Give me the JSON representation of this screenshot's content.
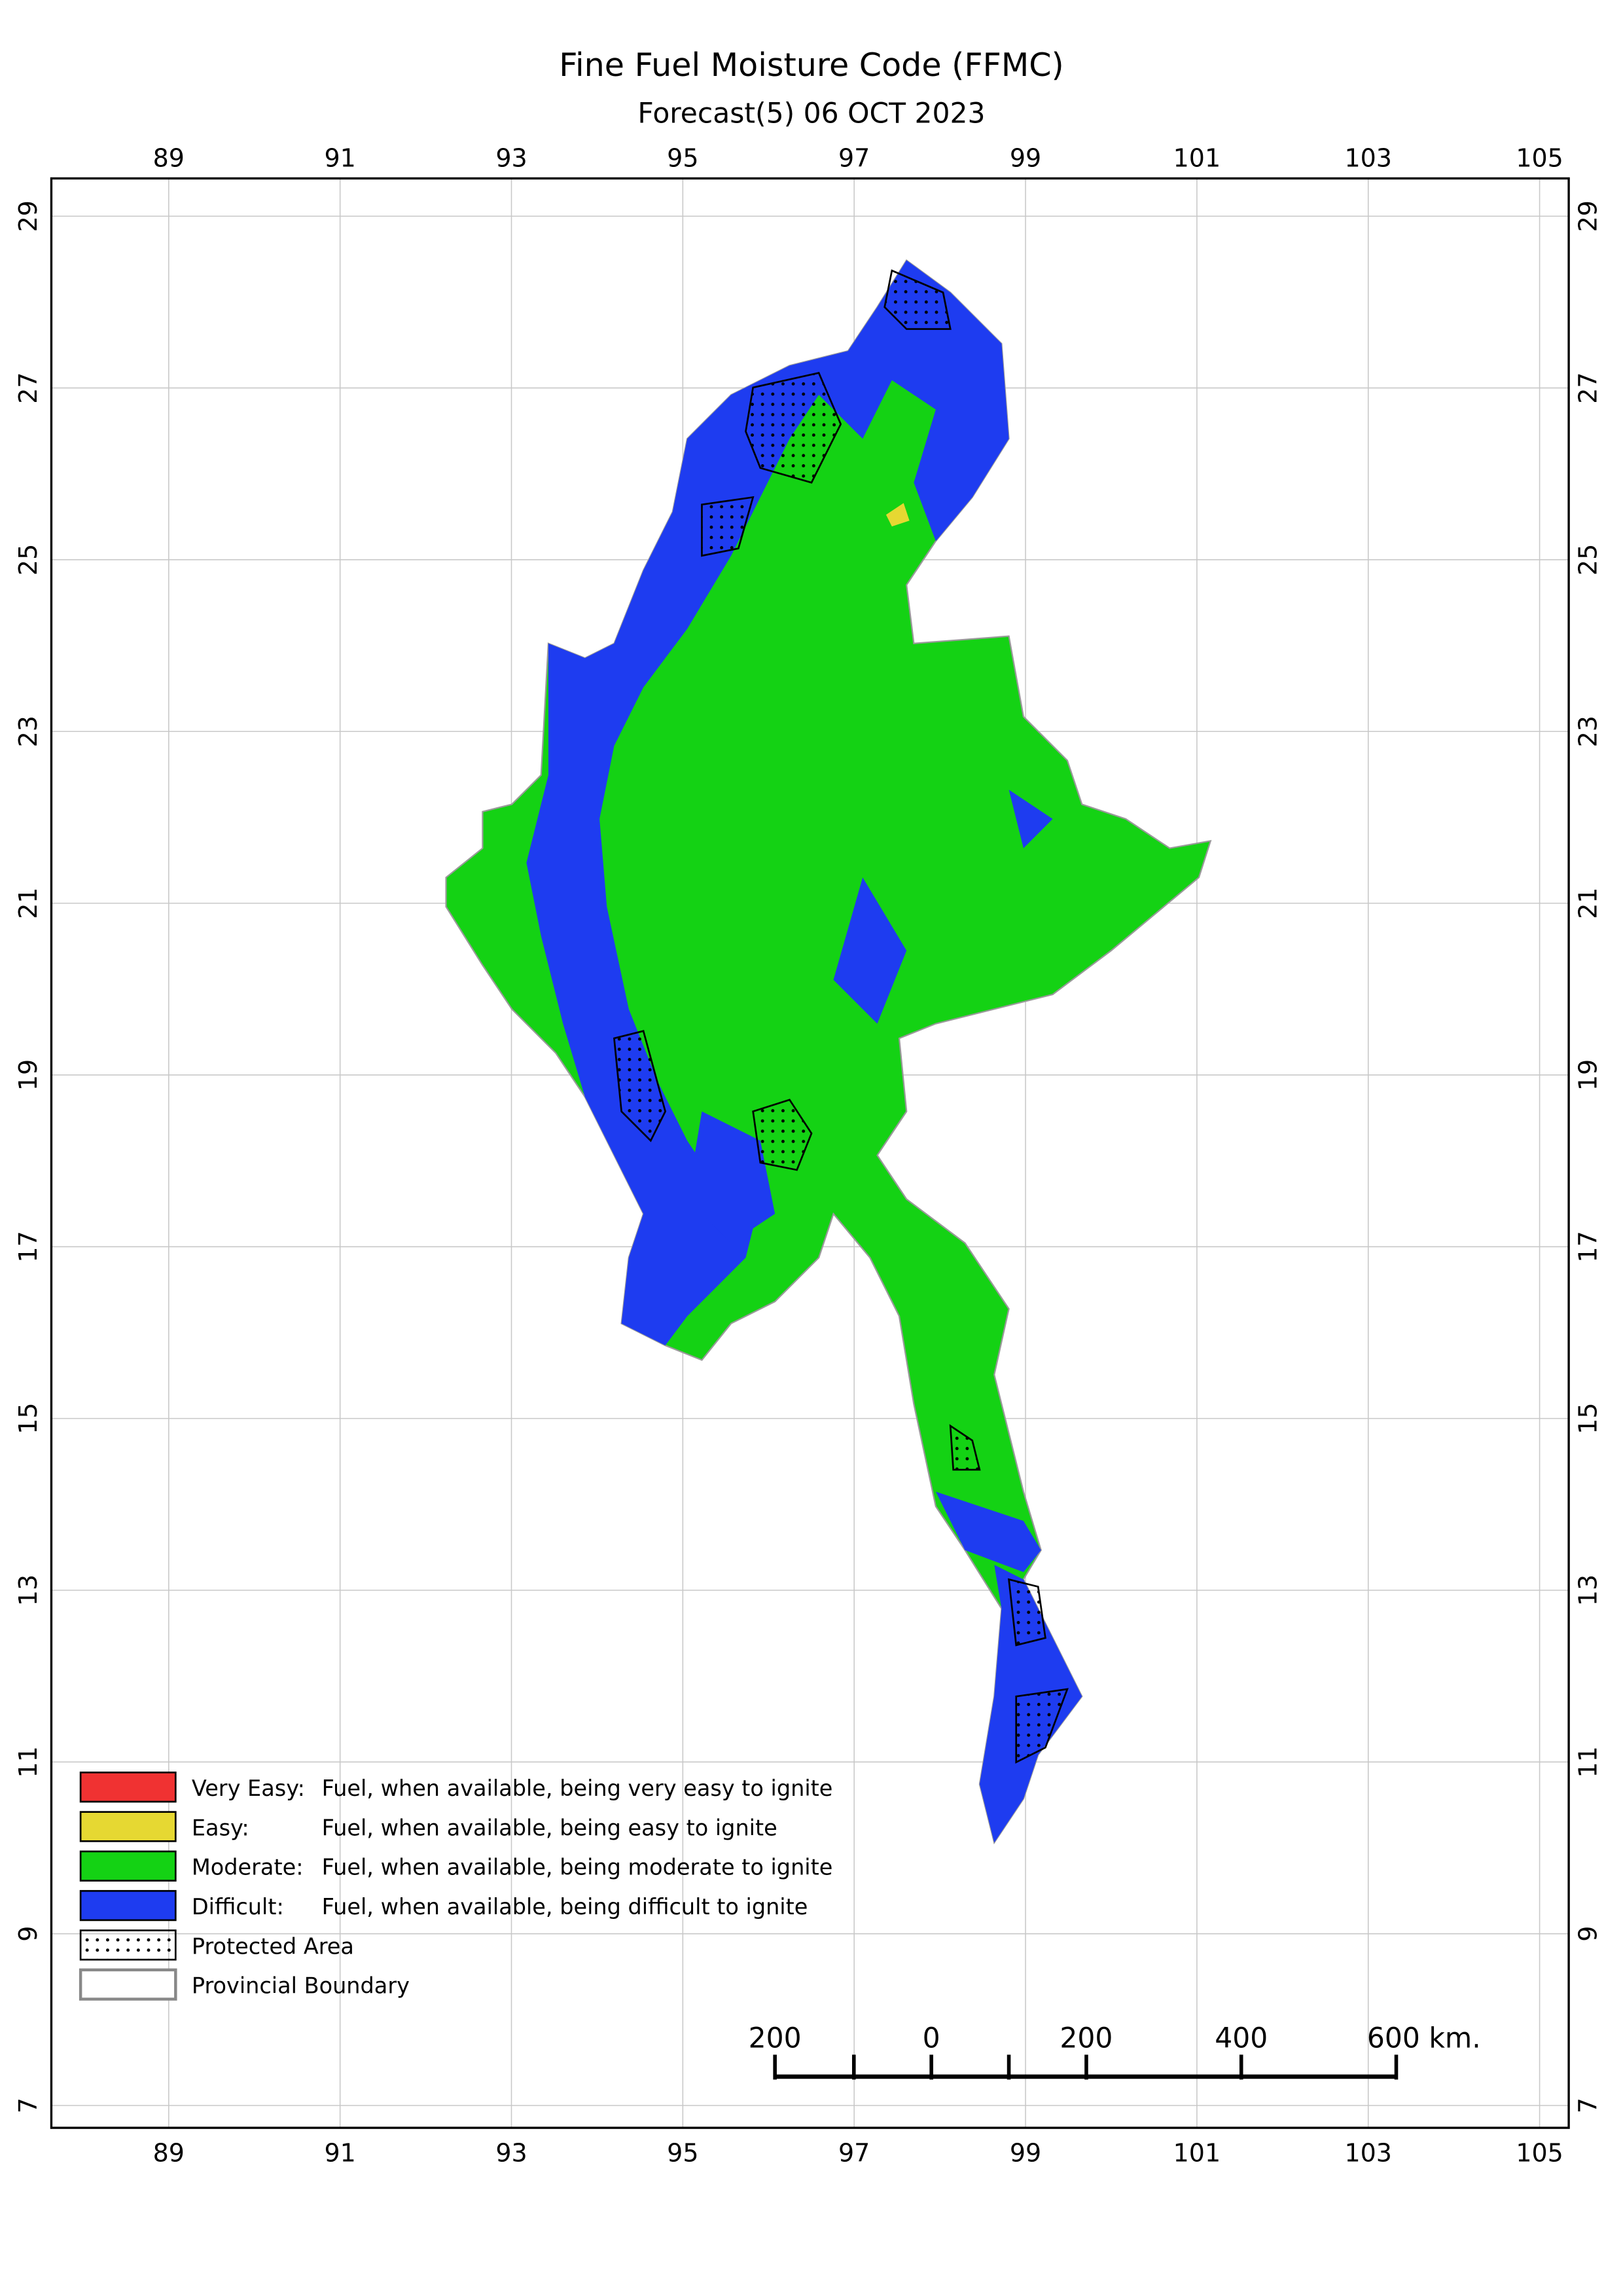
{
  "map": {
    "title": "Fine Fuel Moisture Code (FFMC)",
    "subtitle": "Forecast(5) 06 OCT 2023",
    "xlim": [
      87.63,
      105.34
    ],
    "ylim": [
      6.74,
      29.44
    ],
    "xticks": [
      89,
      91,
      93,
      95,
      97,
      99,
      101,
      103,
      105
    ],
    "yticks": [
      7,
      9,
      11,
      13,
      15,
      17,
      19,
      21,
      23,
      25,
      27,
      29
    ],
    "legend": [
      {
        "label": "Very Easy:",
        "description": "Fuel, when available, being very easy to ignite",
        "color": "#f03232"
      },
      {
        "label": "Easy:",
        "description": "Fuel, when available, being easy to ignite",
        "color": "#e6d832"
      },
      {
        "label": "Moderate:",
        "description": "Fuel, when available, being moderate to ignite",
        "color": "#14d214"
      },
      {
        "label": "Difficult:",
        "description": "Fuel, when available, being difficult to ignite",
        "color": "#1e3cf0"
      },
      {
        "label": "Protected Area"
      },
      {
        "label": "Provincial Boundary"
      }
    ],
    "scale_bar": [
      "200",
      "0",
      "200",
      "400",
      "600 km."
    ]
  }
}
